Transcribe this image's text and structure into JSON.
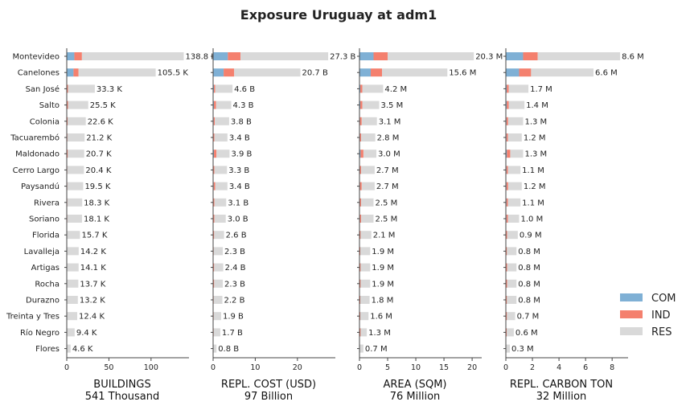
{
  "chart_data": {
    "type": "bar",
    "orientation": "horizontal",
    "stacked": true,
    "title": "Exposure Uruguay at adm1",
    "categories": [
      "Montevideo",
      "Canelones",
      "San José",
      "Salto",
      "Colonia",
      "Tacuarembó",
      "Maldonado",
      "Cerro Largo",
      "Paysandú",
      "Rivera",
      "Soriano",
      "Florida",
      "Lavalleja",
      "Artigas",
      "Rocha",
      "Durazno",
      "Treinta y Tres",
      "Río Negro",
      "Flores"
    ],
    "legend": {
      "position": "bottom-right",
      "entries": [
        {
          "name": "COM",
          "color": "#7fb0d5"
        },
        {
          "name": "IND",
          "color": "#f4806e"
        },
        {
          "name": "RES",
          "color": "#d9d9d9"
        }
      ]
    },
    "panels": [
      {
        "xlabel": "BUILDINGS",
        "subtitle": "541 Thousand",
        "xlim": [
          0,
          145
        ],
        "xticks": [
          0,
          50,
          100
        ],
        "totals": [
          138.8,
          105.5,
          33.3,
          25.5,
          22.6,
          21.2,
          20.7,
          20.4,
          19.5,
          18.3,
          18.1,
          15.7,
          14.2,
          14.1,
          13.7,
          13.2,
          12.4,
          9.4,
          4.6
        ],
        "labels": [
          "138.8 K",
          "105.5 K",
          "33.3 K",
          "25.5 K",
          "22.6 K",
          "21.2 K",
          "20.7 K",
          "20.4 K",
          "19.5 K",
          "18.3 K",
          "18.1 K",
          "15.7 K",
          "14.2 K",
          "14.1 K",
          "13.7 K",
          "13.2 K",
          "12.4 K",
          "9.4 K",
          "4.6 K"
        ],
        "series": [
          {
            "name": "COM",
            "values": [
              9,
              8,
              0.5,
              0.5,
              0.4,
              0.3,
              0.4,
              0.3,
              0.3,
              0.3,
              0.3,
              0.2,
              0.2,
              0.2,
              0.2,
              0.2,
              0.2,
              0.1,
              0.1
            ]
          },
          {
            "name": "IND",
            "values": [
              9,
              6,
              1,
              1,
              0.6,
              0.5,
              0.8,
              0.4,
              0.4,
              0.4,
              0.4,
              0.3,
              0.3,
              0.3,
              0.3,
              0.3,
              0.3,
              0.2,
              0.1
            ]
          },
          {
            "name": "RES",
            "values": [
              120.8,
              91.5,
              31.8,
              24,
              21.6,
              20.4,
              19.5,
              19.7,
              18.8,
              17.6,
              17.4,
              15.2,
              13.7,
              13.6,
              13.2,
              12.7,
              11.9,
              9.1,
              4.4
            ]
          }
        ]
      },
      {
        "xlabel": "REPL. COST (USD)",
        "subtitle": "97 Billion",
        "xlim": [
          0,
          29
        ],
        "xticks": [
          0,
          10,
          20
        ],
        "totals": [
          27.3,
          20.7,
          4.6,
          4.3,
          3.8,
          3.4,
          3.9,
          3.3,
          3.4,
          3.1,
          3.0,
          2.6,
          2.3,
          2.4,
          2.3,
          2.2,
          1.9,
          1.7,
          0.8
        ],
        "labels": [
          "27.3 B",
          "20.7 B",
          "4.6 B",
          "4.3 B",
          "3.8 B",
          "3.4 B",
          "3.9 B",
          "3.3 B",
          "3.4 B",
          "3.1 B",
          "3.0 B",
          "2.6 B",
          "2.3 B",
          "2.4 B",
          "2.3 B",
          "2.2 B",
          "1.9 B",
          "1.7 B",
          "0.8 B"
        ],
        "series": [
          {
            "name": "COM",
            "values": [
              3.5,
              2.5,
              0.2,
              0.2,
              0.15,
              0.1,
              0.2,
              0.1,
              0.15,
              0.1,
              0.1,
              0.1,
              0.05,
              0.1,
              0.1,
              0.05,
              0.05,
              0.05,
              0.02
            ]
          },
          {
            "name": "IND",
            "values": [
              3,
              2.5,
              0.3,
              0.5,
              0.25,
              0.2,
              0.6,
              0.2,
              0.35,
              0.2,
              0.2,
              0.15,
              0.1,
              0.15,
              0.15,
              0.1,
              0.1,
              0.1,
              0.05
            ]
          },
          {
            "name": "RES",
            "values": [
              20.8,
              15.7,
              4.1,
              3.6,
              3.4,
              3.1,
              3.1,
              3.0,
              2.9,
              2.8,
              2.7,
              2.35,
              2.15,
              2.15,
              2.05,
              2.05,
              1.75,
              1.55,
              0.73
            ]
          }
        ]
      },
      {
        "xlabel": "AREA (SQM)",
        "subtitle": "76 Million",
        "xlim": [
          0,
          21.7
        ],
        "xticks": [
          0,
          5,
          10,
          15,
          20
        ],
        "totals": [
          20.3,
          15.6,
          4.2,
          3.5,
          3.1,
          2.8,
          3.0,
          2.7,
          2.7,
          2.5,
          2.5,
          2.1,
          1.9,
          1.9,
          1.9,
          1.8,
          1.6,
          1.3,
          0.7
        ],
        "labels": [
          "20.3 M",
          "15.6 M",
          "4.2 M",
          "3.5 M",
          "3.1 M",
          "2.8 M",
          "3.0 M",
          "2.7 M",
          "2.7 M",
          "2.5 M",
          "2.5 M",
          "2.1 M",
          "1.9 M",
          "1.9 M",
          "1.9 M",
          "1.8 M",
          "1.6 M",
          "1.3 M",
          "0.7 M"
        ],
        "series": [
          {
            "name": "COM",
            "values": [
              2.5,
              2,
              0.15,
              0.15,
              0.1,
              0.1,
              0.2,
              0.1,
              0.1,
              0.1,
              0.1,
              0.05,
              0.05,
              0.05,
              0.05,
              0.05,
              0.05,
              0.05,
              0.02
            ]
          },
          {
            "name": "IND",
            "values": [
              2.5,
              2,
              0.35,
              0.35,
              0.3,
              0.2,
              0.5,
              0.2,
              0.3,
              0.2,
              0.2,
              0.15,
              0.1,
              0.15,
              0.15,
              0.1,
              0.1,
              0.15,
              0.05
            ]
          },
          {
            "name": "RES",
            "values": [
              15.3,
              11.6,
              3.7,
              3.0,
              2.7,
              2.5,
              2.3,
              2.4,
              2.3,
              2.2,
              2.2,
              1.9,
              1.75,
              1.7,
              1.7,
              1.65,
              1.45,
              1.1,
              0.63
            ]
          }
        ]
      },
      {
        "xlabel": "REPL. CARBON TON",
        "subtitle": "32 Million",
        "xlim": [
          0,
          9.2
        ],
        "xticks": [
          0,
          2,
          4,
          6,
          8
        ],
        "totals": [
          8.6,
          6.6,
          1.7,
          1.4,
          1.3,
          1.2,
          1.3,
          1.1,
          1.2,
          1.1,
          1.0,
          0.9,
          0.8,
          0.8,
          0.8,
          0.8,
          0.7,
          0.6,
          0.3
        ],
        "labels": [
          "8.6 M",
          "6.6 M",
          "1.7 M",
          "1.4 M",
          "1.3 M",
          "1.2 M",
          "1.3 M",
          "1.1 M",
          "1.2 M",
          "1.1 M",
          "1.0 M",
          "0.9 M",
          "0.8 M",
          "0.8 M",
          "0.8 M",
          "0.8 M",
          "0.7 M",
          "0.6 M",
          "0.3 M"
        ],
        "series": [
          {
            "name": "COM",
            "values": [
              1.3,
              1,
              0.07,
              0.07,
              0.05,
              0.05,
              0.08,
              0.05,
              0.05,
              0.05,
              0.05,
              0.03,
              0.03,
              0.03,
              0.03,
              0.03,
              0.03,
              0.02,
              0.01
            ]
          },
          {
            "name": "IND",
            "values": [
              1.1,
              0.9,
              0.15,
              0.15,
              0.12,
              0.1,
              0.25,
              0.1,
              0.12,
              0.1,
              0.1,
              0.07,
              0.05,
              0.07,
              0.07,
              0.05,
              0.05,
              0.05,
              0.02
            ]
          },
          {
            "name": "RES",
            "values": [
              6.2,
              4.7,
              1.48,
              1.18,
              1.13,
              1.05,
              0.97,
              0.95,
              1.03,
              0.95,
              0.85,
              0.8,
              0.72,
              0.7,
              0.7,
              0.72,
              0.62,
              0.53,
              0.27
            ]
          }
        ]
      }
    ]
  }
}
